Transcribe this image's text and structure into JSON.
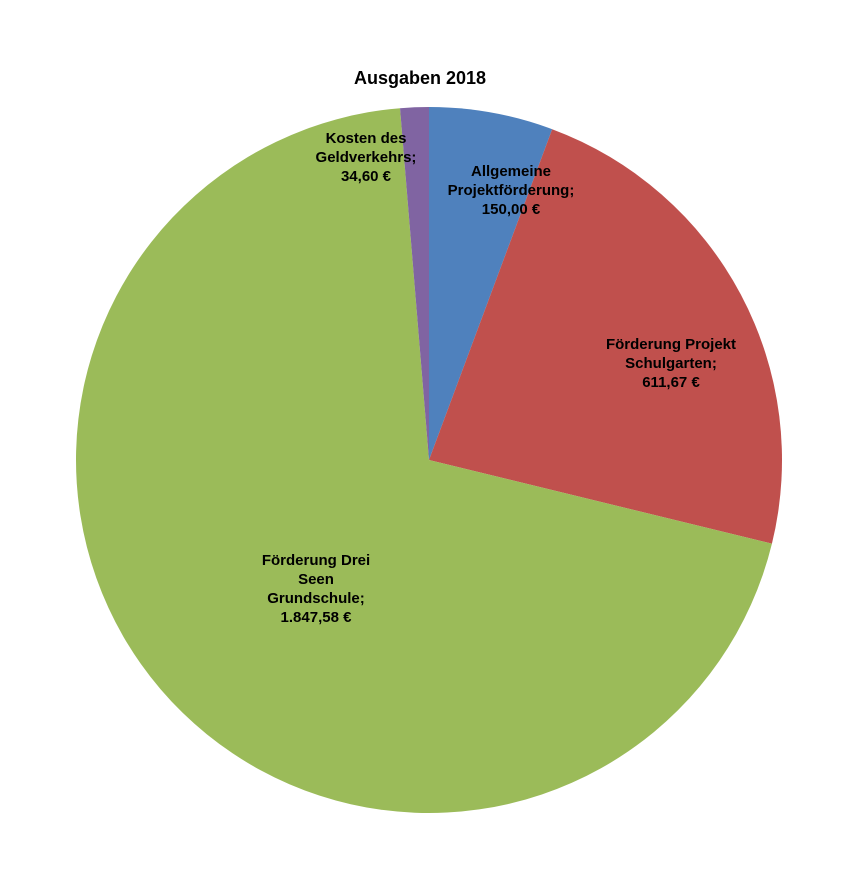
{
  "chart_data": {
    "type": "pie",
    "title": "Ausgaben 2018",
    "slices": [
      {
        "label_lines": [
          "Allgemeine",
          "Projektförderung;",
          "150,00 €"
        ],
        "value": 150.0,
        "color": "#4f81bd"
      },
      {
        "label_lines": [
          "Förderung Projekt",
          "Schulgarten;",
          "611,67 €"
        ],
        "value": 611.67,
        "color": "#c0504d"
      },
      {
        "label_lines": [
          "Förderung Drei",
          "Seen",
          "Grundschule;",
          "1.847,58 €"
        ],
        "value": 1847.58,
        "color": "#9bbb59"
      },
      {
        "label_lines": [
          "Kosten des",
          "Geldverkehrs;",
          "34,60 €"
        ],
        "value": 34.6,
        "color": "#8064a2"
      }
    ],
    "legend": "none"
  }
}
